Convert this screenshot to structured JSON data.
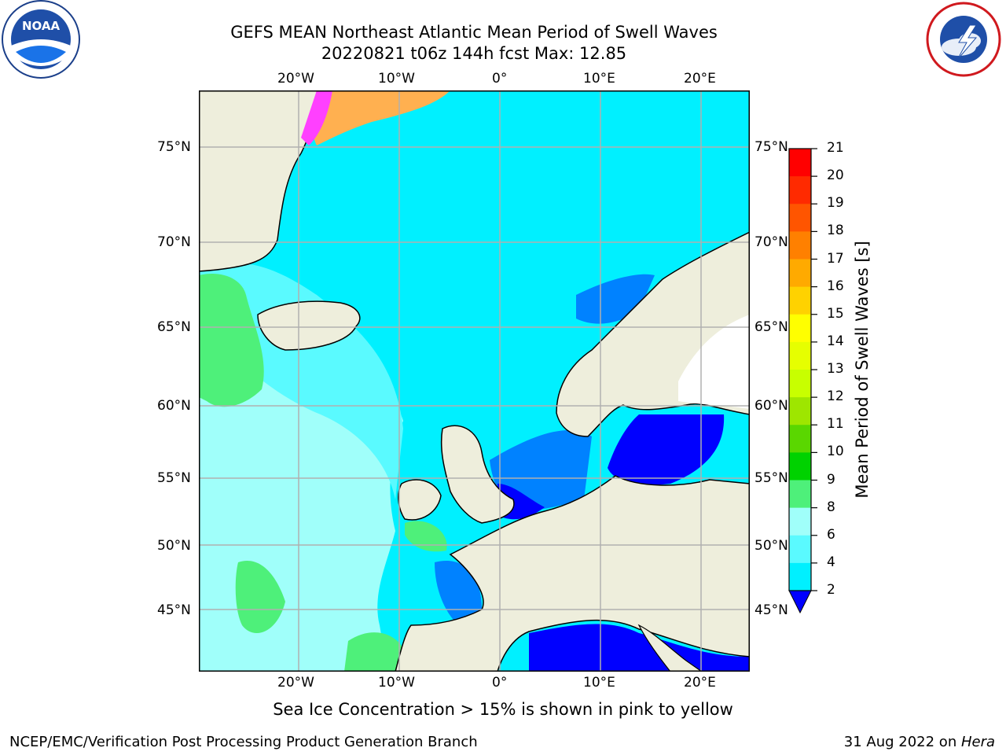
{
  "header": {
    "title_line1": "GEFS MEAN Northeast Atlantic Mean Period of Swell Waves",
    "title_line2": "20220821 t06z 144h fcst   Max: 12.85"
  },
  "logos": {
    "left": {
      "text": "NOAA",
      "ring_text": "NATIONAL OCEANIC AND ATMOSPHERIC ADMINISTRATION · U.S. DEPARTMENT OF COMMERCE"
    },
    "right": {
      "ring_text": "NATIONAL WEATHER SERVICE"
    }
  },
  "axes": {
    "lon_labels": [
      "20°W",
      "10°W",
      "0°",
      "10°E",
      "20°E"
    ],
    "lat_labels": [
      "75°N",
      "70°N",
      "65°N",
      "60°N",
      "55°N",
      "50°N",
      "45°N"
    ]
  },
  "colorbar": {
    "label": "Mean Period of Swell Waves [s]",
    "ticks": [
      "21",
      "20",
      "19",
      "18",
      "17",
      "16",
      "15",
      "14",
      "13",
      "12",
      "11",
      "10",
      "9",
      "8",
      "6",
      "4",
      "2"
    ],
    "colors": [
      "#ff0000",
      "#ff2a00",
      "#ff5500",
      "#ff8000",
      "#ffaa00",
      "#ffd200",
      "#ffff00",
      "#e6ff00",
      "#c8ff00",
      "#9ee600",
      "#5ad700",
      "#00d200",
      "#4ef07a",
      "#a0fffa",
      "#5afaff",
      "#00f0ff",
      "#0082ff",
      "#0000ff"
    ]
  },
  "annotation": "Sea Ice Concentration > 15% is shown in pink to yellow",
  "footer": {
    "left": "NCEP/EMC/Verification Post Processing Product Generation Branch",
    "right_date": "31 Aug 2022 on ",
    "right_host": "Hera"
  }
}
